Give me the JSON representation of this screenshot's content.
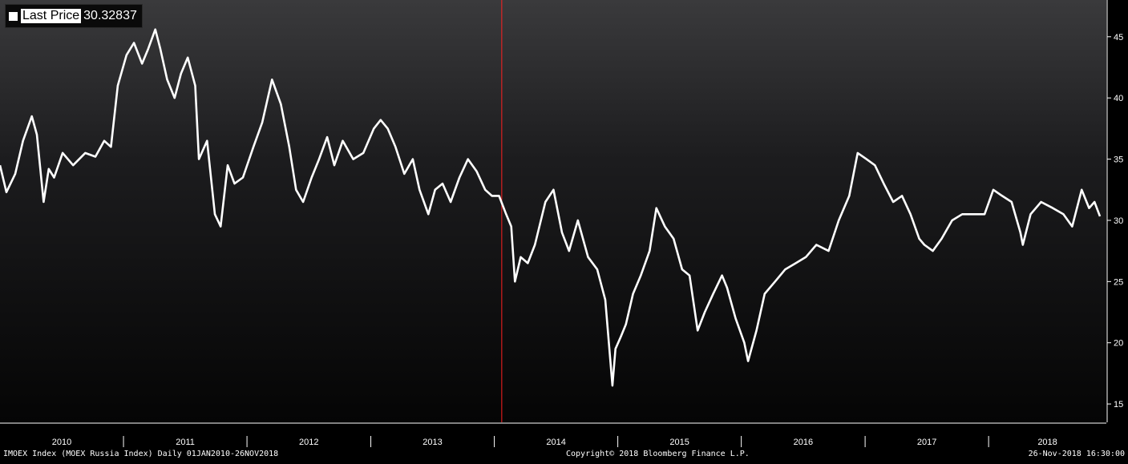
{
  "legend": {
    "label": "Last Price",
    "value": "30.32837"
  },
  "footer": {
    "left": "IMOEX Index (MOEX Russia Index)  Daily 01JAN2010-26NOV2018",
    "center": "Copyright© 2018 Bloomberg Finance L.P.",
    "right": "26-Nov-2018 16:30:00"
  },
  "colors": {
    "line": "#ffffff",
    "marker": "#ff2020",
    "background_top": "#3a3a3c",
    "background_bottom": "#050505"
  },
  "chart_data": {
    "type": "line",
    "series": [
      {
        "name": "Last Price",
        "points": [
          [
            "2010-01-01",
            34.5
          ],
          [
            "2010-01-20",
            32.3
          ],
          [
            "2010-02-15",
            33.8
          ],
          [
            "2010-03-10",
            36.5
          ],
          [
            "2010-04-05",
            38.5
          ],
          [
            "2010-04-20",
            37.0
          ],
          [
            "2010-05-10",
            31.5
          ],
          [
            "2010-05-25",
            34.2
          ],
          [
            "2010-06-10",
            33.5
          ],
          [
            "2010-07-05",
            35.5
          ],
          [
            "2010-08-05",
            34.5
          ],
          [
            "2010-09-10",
            35.5
          ],
          [
            "2010-10-10",
            35.2
          ],
          [
            "2010-11-05",
            36.5
          ],
          [
            "2010-11-25",
            36.0
          ],
          [
            "2010-12-15",
            41.0
          ],
          [
            "2011-01-10",
            43.5
          ],
          [
            "2011-02-01",
            44.5
          ],
          [
            "2011-02-25",
            42.8
          ],
          [
            "2011-03-15",
            44.0
          ],
          [
            "2011-04-05",
            45.6
          ],
          [
            "2011-04-20",
            44.0
          ],
          [
            "2011-05-10",
            41.5
          ],
          [
            "2011-06-01",
            40.0
          ],
          [
            "2011-06-20",
            42.0
          ],
          [
            "2011-07-10",
            43.3
          ],
          [
            "2011-08-01",
            41.0
          ],
          [
            "2011-08-12",
            35.0
          ],
          [
            "2011-09-05",
            36.5
          ],
          [
            "2011-09-28",
            30.5
          ],
          [
            "2011-10-15",
            29.5
          ],
          [
            "2011-11-05",
            34.5
          ],
          [
            "2011-11-25",
            33.0
          ],
          [
            "2011-12-20",
            33.5
          ],
          [
            "2012-01-20",
            36.0
          ],
          [
            "2012-02-15",
            38.0
          ],
          [
            "2012-03-15",
            41.5
          ],
          [
            "2012-04-10",
            39.5
          ],
          [
            "2012-05-05",
            36.0
          ],
          [
            "2012-05-25",
            32.5
          ],
          [
            "2012-06-15",
            31.5
          ],
          [
            "2012-07-10",
            33.5
          ],
          [
            "2012-08-01",
            35.0
          ],
          [
            "2012-08-25",
            36.8
          ],
          [
            "2012-09-15",
            34.5
          ],
          [
            "2012-10-10",
            36.5
          ],
          [
            "2012-11-10",
            35.0
          ],
          [
            "2012-12-10",
            35.5
          ],
          [
            "2013-01-10",
            37.5
          ],
          [
            "2013-01-30",
            38.2
          ],
          [
            "2013-02-20",
            37.5
          ],
          [
            "2013-03-15",
            36.0
          ],
          [
            "2013-04-10",
            33.8
          ],
          [
            "2013-05-05",
            35.0
          ],
          [
            "2013-05-25",
            32.5
          ],
          [
            "2013-06-20",
            30.5
          ],
          [
            "2013-07-10",
            32.5
          ],
          [
            "2013-08-01",
            33.0
          ],
          [
            "2013-08-25",
            31.5
          ],
          [
            "2013-09-20",
            33.5
          ],
          [
            "2013-10-15",
            35.0
          ],
          [
            "2013-11-10",
            34.0
          ],
          [
            "2013-12-05",
            32.5
          ],
          [
            "2013-12-25",
            32.0
          ],
          [
            "2014-01-15",
            32.0
          ],
          [
            "2014-02-05",
            30.5
          ],
          [
            "2014-02-20",
            29.5
          ],
          [
            "2014-03-03",
            25.0
          ],
          [
            "2014-03-20",
            27.0
          ],
          [
            "2014-04-10",
            26.5
          ],
          [
            "2014-05-01",
            28.0
          ],
          [
            "2014-06-01",
            31.5
          ],
          [
            "2014-06-25",
            32.5
          ],
          [
            "2014-07-20",
            29.0
          ],
          [
            "2014-08-10",
            27.5
          ],
          [
            "2014-09-05",
            30.0
          ],
          [
            "2014-10-05",
            27.0
          ],
          [
            "2014-11-01",
            26.0
          ],
          [
            "2014-11-25",
            23.5
          ],
          [
            "2014-12-16",
            16.5
          ],
          [
            "2014-12-25",
            19.5
          ],
          [
            "2015-01-10",
            20.5
          ],
          [
            "2015-01-25",
            21.5
          ],
          [
            "2015-02-15",
            24.0
          ],
          [
            "2015-03-10",
            25.5
          ],
          [
            "2015-04-05",
            27.5
          ],
          [
            "2015-04-25",
            31.0
          ],
          [
            "2015-05-20",
            29.5
          ],
          [
            "2015-06-15",
            28.5
          ],
          [
            "2015-07-10",
            26.0
          ],
          [
            "2015-08-01",
            25.5
          ],
          [
            "2015-08-25",
            21.0
          ],
          [
            "2015-09-15",
            22.5
          ],
          [
            "2015-10-10",
            24.0
          ],
          [
            "2015-11-05",
            25.5
          ],
          [
            "2015-11-20",
            24.5
          ],
          [
            "2015-12-15",
            22.0
          ],
          [
            "2016-01-10",
            20.0
          ],
          [
            "2016-01-21",
            18.5
          ],
          [
            "2016-02-15",
            21.0
          ],
          [
            "2016-03-10",
            24.0
          ],
          [
            "2016-04-10",
            25.0
          ],
          [
            "2016-05-10",
            26.0
          ],
          [
            "2016-06-10",
            26.5
          ],
          [
            "2016-07-10",
            27.0
          ],
          [
            "2016-08-10",
            28.0
          ],
          [
            "2016-09-15",
            27.5
          ],
          [
            "2016-10-15",
            30.0
          ],
          [
            "2016-11-15",
            32.0
          ],
          [
            "2016-12-10",
            35.5
          ],
          [
            "2017-01-05",
            35.0
          ],
          [
            "2017-01-30",
            34.5
          ],
          [
            "2017-02-25",
            33.0
          ],
          [
            "2017-03-25",
            31.5
          ],
          [
            "2017-04-20",
            32.0
          ],
          [
            "2017-05-15",
            30.5
          ],
          [
            "2017-06-10",
            28.5
          ],
          [
            "2017-06-25",
            28.0
          ],
          [
            "2017-07-20",
            27.5
          ],
          [
            "2017-08-15",
            28.5
          ],
          [
            "2017-09-15",
            30.0
          ],
          [
            "2017-10-15",
            30.5
          ],
          [
            "2017-11-20",
            30.5
          ],
          [
            "2017-12-20",
            30.5
          ],
          [
            "2018-01-15",
            32.5
          ],
          [
            "2018-02-10",
            32.0
          ],
          [
            "2018-03-10",
            31.5
          ],
          [
            "2018-04-05",
            29.0
          ],
          [
            "2018-04-12",
            28.0
          ],
          [
            "2018-05-05",
            30.5
          ],
          [
            "2018-06-05",
            31.5
          ],
          [
            "2018-07-10",
            31.0
          ],
          [
            "2018-08-10",
            30.5
          ],
          [
            "2018-09-05",
            29.5
          ],
          [
            "2018-10-03",
            32.5
          ],
          [
            "2018-10-25",
            31.0
          ],
          [
            "2018-11-10",
            31.5
          ],
          [
            "2018-11-26",
            30.33
          ]
        ]
      }
    ],
    "x_labels": [
      "2010",
      "2011",
      "2012",
      "2013",
      "2014",
      "2015",
      "2016",
      "2017",
      "2018"
    ],
    "y_ticks": [
      15,
      20,
      25,
      30,
      35,
      40,
      45
    ],
    "ylim": [
      13.5,
      48.0
    ],
    "xlim": [
      "2010-01-01",
      "2018-12-15"
    ],
    "vertical_marker": "2014-01-23",
    "grid": false,
    "legend_position": "top-left"
  }
}
